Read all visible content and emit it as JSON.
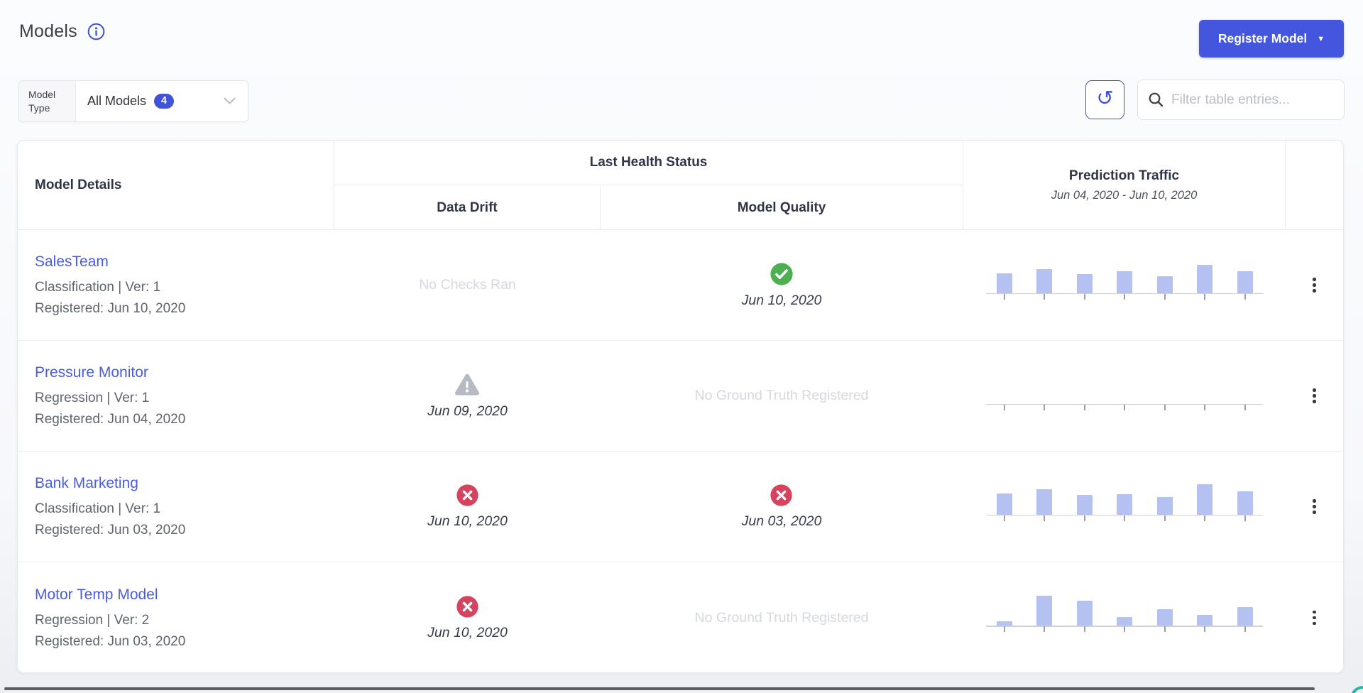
{
  "app": {
    "title": "Models"
  },
  "toolbar": {
    "register_button_label": "Register Model",
    "register_caret_glyph": "▼",
    "refresh_icon_glyph": "↺",
    "filter": {
      "label": "Model Type",
      "value": "All Models",
      "count": "4"
    },
    "search_placeholder": "Filter table entries..."
  },
  "table": {
    "header": {
      "model_details": "Model Details",
      "last_health_status": "Last Health Status",
      "data_drift": "Data Drift",
      "model_quality": "Model Quality",
      "prediction_traffic": "Prediction Traffic",
      "traffic_date_range": "Jun 04, 2020 - Jun 10, 2020"
    },
    "rows": [
      {
        "name": "SalesTeam",
        "meta": "Classification | Ver: 1",
        "registered": "Registered: Jun 10, 2020",
        "data_drift": {
          "state": "none",
          "text": "No Checks Ran"
        },
        "model_quality": {
          "state": "ok",
          "text": "Jun 10, 2020"
        },
        "traffic_bar_heights": [
          28,
          34,
          27,
          31,
          24,
          40,
          31
        ]
      },
      {
        "name": "Pressure Monitor",
        "meta": "Regression | Ver: 1",
        "registered": "Registered: Jun 04, 2020",
        "data_drift": {
          "state": "warning",
          "text": "Jun 09, 2020"
        },
        "model_quality": {
          "state": "none",
          "text": "No Ground Truth Registered"
        },
        "traffic_bar_heights": [
          0,
          0,
          0,
          0,
          0,
          0,
          0
        ]
      },
      {
        "name": "Bank Marketing",
        "meta": "Classification | Ver: 1",
        "registered": "Registered: Jun 03, 2020",
        "data_drift": {
          "state": "error",
          "text": "Jun 10, 2020"
        },
        "model_quality": {
          "state": "error",
          "text": "Jun 03, 2020"
        },
        "traffic_bar_heights": [
          30,
          36,
          28,
          29,
          25,
          43,
          33
        ]
      },
      {
        "name": "Motor Temp Model",
        "meta": "Regression | Ver: 2",
        "registered": "Registered: Jun 03, 2020",
        "data_drift": {
          "state": "error",
          "text": "Jun 10, 2020"
        },
        "model_quality": {
          "state": "none",
          "text": "No Ground Truth Registered"
        },
        "traffic_bar_heights": [
          6,
          42,
          35,
          12,
          23,
          15,
          26
        ]
      }
    ]
  },
  "colors": {
    "brand_blue": "#4356dd",
    "link_blue": "#4a5ce0",
    "badge_blue": "#4154d8",
    "success_green": "#4caf50",
    "error_red": "#d5435f",
    "warning_gray": "#b5bac3",
    "traffic_bar": "#b5c2f1",
    "muted_text": "#d5d8de"
  }
}
